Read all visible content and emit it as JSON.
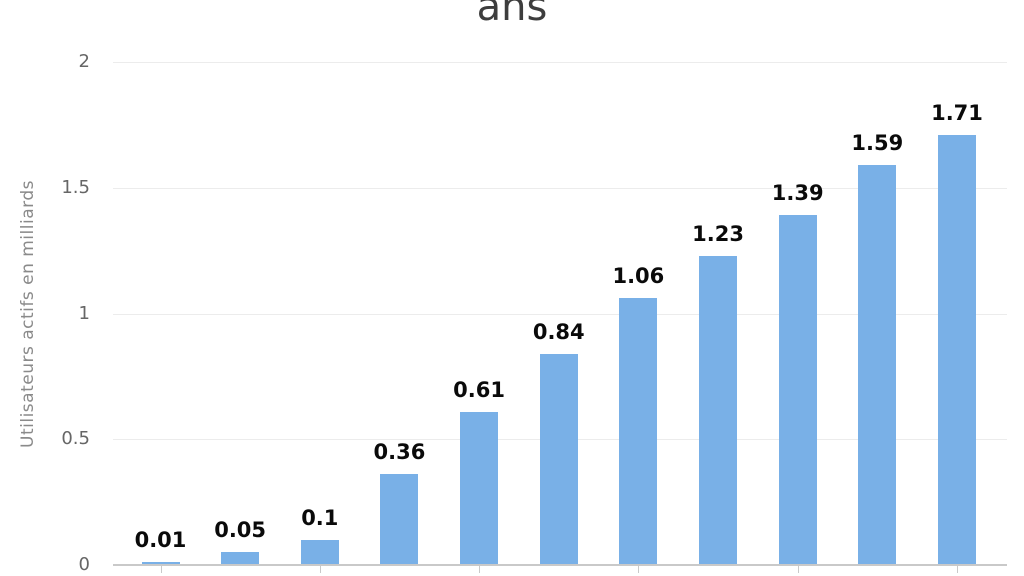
{
  "chart_data": {
    "type": "bar",
    "title": "ans",
    "ylabel": "Utilisateurs actifs en milliards",
    "values": [
      0.01,
      0.05,
      0.1,
      0.36,
      0.61,
      0.84,
      1.06,
      1.23,
      1.39,
      1.59,
      1.71
    ],
    "value_labels": [
      "0.01",
      "0.05",
      "0.1",
      "0.36",
      "0.61",
      "0.84",
      "1.06",
      "1.23",
      "1.39",
      "1.59",
      "1.71"
    ],
    "ylim": [
      0,
      2
    ],
    "yticks": [
      {
        "value": 0,
        "label": "0"
      },
      {
        "value": 0.5,
        "label": "0.5"
      },
      {
        "value": 1,
        "label": "1"
      },
      {
        "value": 1.5,
        "label": "1.5"
      },
      {
        "value": 2,
        "label": "2"
      }
    ],
    "grid": true,
    "legend": "none",
    "x_tick_labels_visible": false,
    "x_tick_marks_on_every_other_bar": true,
    "colors": {
      "bar": "#79b0e7",
      "gridline": "#ececec",
      "axis": "#c9c9c9",
      "y_tick_text": "#666666",
      "y_axis_label_text": "#8a8a8a",
      "title_text": "#3d3d3d",
      "value_label_text": "#0a0a0a",
      "background": "#ffffff"
    }
  }
}
